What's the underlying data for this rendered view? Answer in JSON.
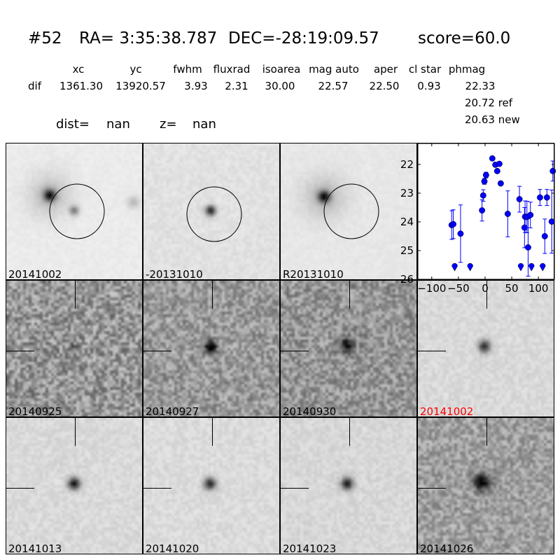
{
  "header": {
    "id": "#52",
    "ra": "RA= 3:35:38.787",
    "dec": "DEC=-28:19:09.57",
    "score": "score=60.0"
  },
  "table": {
    "columns": [
      "xc",
      "yc",
      "fwhm",
      "fluxrad",
      "isoarea",
      "mag auto",
      "aper",
      "cl star",
      "phmag"
    ],
    "row_label": "dif",
    "values": [
      "1361.30",
      "13920.57",
      "3.93",
      "2.31",
      "30.00",
      "22.57",
      "22.50",
      "0.93",
      "22.33"
    ],
    "ref": "20.72 ref",
    "new": "20.63 new"
  },
  "dist": {
    "label": "dist=",
    "value": "nan"
  },
  "z": {
    "label": "z=",
    "value": "nan"
  },
  "stamps_top": [
    {
      "label": "20141002"
    },
    {
      "label": "-20131010"
    },
    {
      "label": "R20131010"
    }
  ],
  "stamps_grid": [
    {
      "label": "20140925"
    },
    {
      "label": "20140927"
    },
    {
      "label": "20140930"
    },
    {
      "label": "20141002",
      "highlight": true
    },
    {
      "label": "20141013"
    },
    {
      "label": "20141020"
    },
    {
      "label": "20141023"
    },
    {
      "label": "20141026"
    }
  ],
  "colors": {
    "points": "#0000ff",
    "highlight_label": "#ff0000"
  },
  "chart_data": {
    "type": "scatter",
    "title": "",
    "xlabel": "",
    "ylabel": "",
    "xlim": [
      -126,
      130
    ],
    "ylim": [
      26,
      21.27
    ],
    "y_inverted": true,
    "grid": false,
    "xticks": [
      "-100",
      "-50",
      "0",
      "50",
      "100"
    ],
    "yticks": [
      "22",
      "23",
      "24",
      "25",
      "26"
    ],
    "points": [
      {
        "x": -62.7,
        "y": 24.11,
        "err": 0.5
      },
      {
        "x": -59.6,
        "y": 24.08,
        "err": 0.5
      },
      {
        "x": -46,
        "y": 24.41,
        "err": 1.0
      },
      {
        "x": -5.7,
        "y": 23.6,
        "err": 0.37
      },
      {
        "x": -3.5,
        "y": 23.08,
        "err": 0.2
      },
      {
        "x": -1.3,
        "y": 22.59,
        "err": 0.1
      },
      {
        "x": 1.8,
        "y": 22.37,
        "err": 0.1
      },
      {
        "x": 13.6,
        "y": 21.79,
        "err": 0.05
      },
      {
        "x": 19.3,
        "y": 22.01,
        "err": 0.05
      },
      {
        "x": 22.8,
        "y": 22.23,
        "err": 0.06
      },
      {
        "x": 26.8,
        "y": 21.98,
        "err": 0.06
      },
      {
        "x": 29.4,
        "y": 22.66,
        "err": 0.06
      },
      {
        "x": 42.5,
        "y": 23.72,
        "err": 0.8
      },
      {
        "x": 64.5,
        "y": 23.21,
        "err": 0.45
      },
      {
        "x": 74,
        "y": 24.2,
        "err": 0.7
      },
      {
        "x": 75,
        "y": 23.82,
        "err": 0.55
      },
      {
        "x": 78.5,
        "y": 23.83,
        "err": 0.55
      },
      {
        "x": 80.7,
        "y": 24.89,
        "err": 1.0
      },
      {
        "x": 85,
        "y": 23.76,
        "err": 0.45
      },
      {
        "x": 103,
        "y": 23.15,
        "err": 0.28
      },
      {
        "x": 112,
        "y": 24.5,
        "err": 0.6
      },
      {
        "x": 116,
        "y": 23.15,
        "err": 0.28
      },
      {
        "x": 125,
        "y": 23.99,
        "err": 1.1
      },
      {
        "x": 127,
        "y": 22.23,
        "err": 0.35
      }
    ],
    "upper_limits": [
      {
        "x": -57,
        "y": 25.54
      },
      {
        "x": -28,
        "y": 25.54
      },
      {
        "x": 67,
        "y": 25.54
      },
      {
        "x": 87,
        "y": 25.54
      },
      {
        "x": 108,
        "y": 25.54
      }
    ]
  }
}
